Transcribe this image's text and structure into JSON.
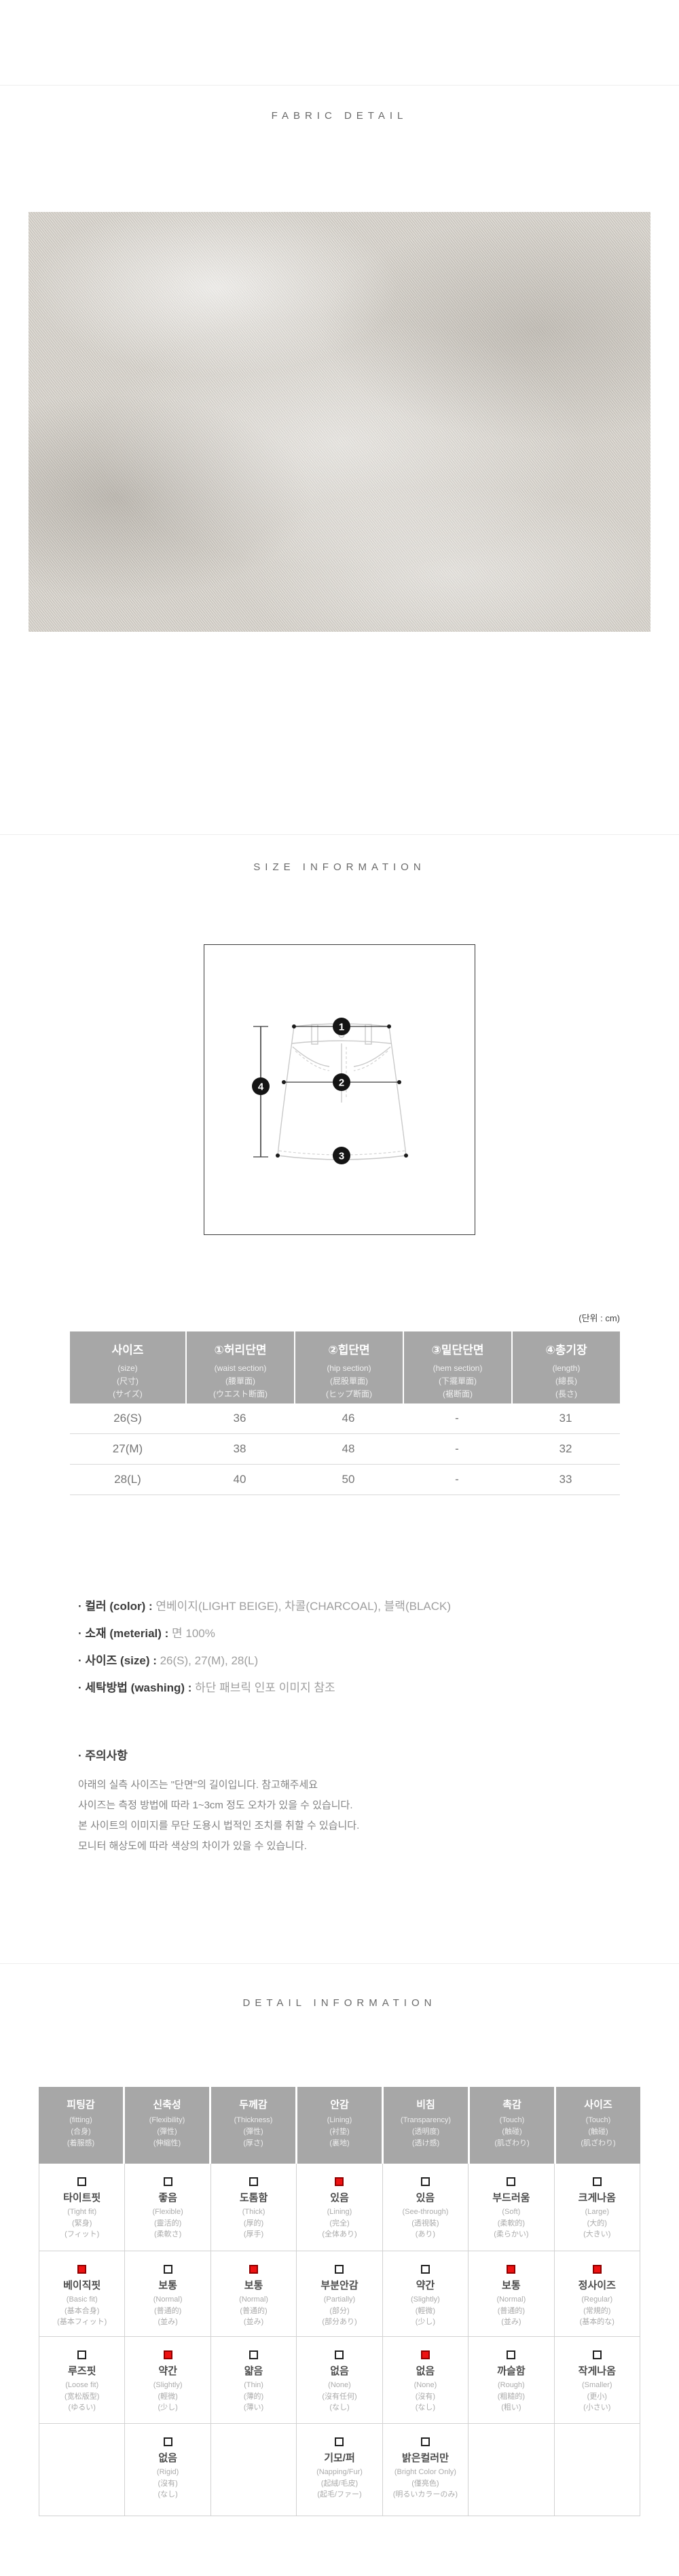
{
  "sections": {
    "fabric_title": "FABRIC DETAIL",
    "size_title": "SIZE INFORMATION",
    "detail_title": "DETAIL INFORMATION"
  },
  "colors": {
    "header_gray": "#a7a7a7",
    "checked_red": "#ee1212"
  },
  "diagram": {
    "badge1": "1",
    "badge2": "2",
    "badge3": "3",
    "badge4": "4"
  },
  "size_table": {
    "unit_note": "(단위 : cm)",
    "columns": [
      {
        "lines": [
          "사이즈",
          "(size)",
          "(尺寸)",
          "(サイズ)"
        ]
      },
      {
        "lines": [
          "①허리단면",
          "(waist section)",
          "(腰單面)",
          "(ウエスト断面)"
        ]
      },
      {
        "lines": [
          "②힙단면",
          "(hip section)",
          "(屁股單面)",
          "(ヒップ断面)"
        ]
      },
      {
        "lines": [
          "③밑단단면",
          "(hem section)",
          "(下擺單面)",
          "(裾断面)"
        ]
      },
      {
        "lines": [
          "④총기장",
          "(length)",
          "(總長)",
          "(長さ)"
        ]
      }
    ],
    "rows": [
      [
        "26(S)",
        "36",
        "46",
        "-",
        "31"
      ],
      [
        "27(M)",
        "38",
        "48",
        "-",
        "32"
      ],
      [
        "28(L)",
        "40",
        "50",
        "-",
        "33"
      ]
    ]
  },
  "product_info": {
    "items": [
      {
        "label": "· 컬러 (color) :",
        "value": "연베이지(LIGHT BEIGE), 차콜(CHARCOAL), 블랙(BLACK)"
      },
      {
        "label": "· 소재 (meterial) :",
        "value": "면 100%"
      },
      {
        "label": "· 사이즈 (size) :",
        "value": "26(S), 27(M), 28(L)"
      },
      {
        "label": "· 세탁방법 (washing) :",
        "value": "하단 패브릭 인포 이미지 참조"
      }
    ],
    "notice_title": "· 주의사항",
    "notices": [
      "아래의 실측 사이즈는 \"단면\"의 길이입니다. 참고해주세요",
      "사이즈는 측정 방법에 따라 1~3cm 정도 오차가 있을 수 있습니다.",
      "본 사이트의 이미지를 무단 도용시 법적인 조치를 취할 수 있습니다.",
      "모니터 해상도에 따라 색상의 차이가 있을 수 있습니다."
    ]
  },
  "detail_table": {
    "headers": [
      {
        "lines": [
          "피팅감",
          "(fitting)",
          "(合身)",
          "(着服感)"
        ]
      },
      {
        "lines": [
          "신축성",
          "(Flexibility)",
          "(彈性)",
          "(伸縮性)"
        ]
      },
      {
        "lines": [
          "두께감",
          "(Thickness)",
          "(彈性)",
          "(厚さ)"
        ]
      },
      {
        "lines": [
          "안감",
          "(Lining)",
          "(衬垫)",
          "(裏地)"
        ]
      },
      {
        "lines": [
          "비침",
          "(Transparency)",
          "(透明度)",
          "(透け感)"
        ]
      },
      {
        "lines": [
          "촉감",
          "(Touch)",
          "(触碰)",
          "(肌ざわり)"
        ]
      },
      {
        "lines": [
          "사이즈",
          "(Touch)",
          "(触碰)",
          "(肌ざわり)"
        ]
      }
    ],
    "rows": [
      [
        {
          "checked": false,
          "lines": [
            "타이트핏",
            "(Tight fit)",
            "(緊身)",
            "(フィット)"
          ]
        },
        {
          "checked": false,
          "lines": [
            "좋음",
            "(Flexible)",
            "(靈活的)",
            "(柔軟さ)"
          ]
        },
        {
          "checked": false,
          "lines": [
            "도톰함",
            "(Thick)",
            "(厚的)",
            "(厚手)"
          ]
        },
        {
          "checked": true,
          "lines": [
            "있음",
            "(Lining)",
            "(完全)",
            "(全体あり)"
          ]
        },
        {
          "checked": false,
          "lines": [
            "있음",
            "(See-through)",
            "(透視裝)",
            "(あり)"
          ]
        },
        {
          "checked": false,
          "lines": [
            "부드러움",
            "(Soft)",
            "(柔軟的)",
            "(柔らかい)"
          ]
        },
        {
          "checked": false,
          "lines": [
            "크게나옴",
            "(Large)",
            "(大的)",
            "(大きい)"
          ]
        }
      ],
      [
        {
          "checked": true,
          "lines": [
            "베이직핏",
            "(Basic fit)",
            "(基本合身)",
            "(基本フィット)"
          ]
        },
        {
          "checked": false,
          "lines": [
            "보통",
            "(Normal)",
            "(普通的)",
            "(並み)"
          ]
        },
        {
          "checked": true,
          "lines": [
            "보통",
            "(Normal)",
            "(普通的)",
            "(並み)"
          ]
        },
        {
          "checked": false,
          "lines": [
            "부분안감",
            "(Partially)",
            "(部分)",
            "(部分あり)"
          ]
        },
        {
          "checked": false,
          "lines": [
            "약간",
            "(Slightly)",
            "(輕微)",
            "(少し)"
          ]
        },
        {
          "checked": true,
          "lines": [
            "보통",
            "(Normal)",
            "(普通的)",
            "(並み)"
          ]
        },
        {
          "checked": true,
          "lines": [
            "정사이즈",
            "(Regular)",
            "(常規的)",
            "(基本的な)"
          ]
        }
      ],
      [
        {
          "checked": false,
          "lines": [
            "루즈핏",
            "(Loose fit)",
            "(宽松版型)",
            "(ゆるい)"
          ]
        },
        {
          "checked": true,
          "lines": [
            "약간",
            "(Slightly)",
            "(輕微)",
            "(少し)"
          ]
        },
        {
          "checked": false,
          "lines": [
            "얇음",
            "(Thin)",
            "(薄的)",
            "(薄い)"
          ]
        },
        {
          "checked": false,
          "lines": [
            "없음",
            "(None)",
            "(沒有任何)",
            "(なし)"
          ]
        },
        {
          "checked": true,
          "lines": [
            "없음",
            "(None)",
            "(沒有)",
            "(なし)"
          ]
        },
        {
          "checked": false,
          "lines": [
            "까슬함",
            "(Rough)",
            "(粗糙的)",
            "(粗い)"
          ]
        },
        {
          "checked": false,
          "lines": [
            "작게나옴",
            "(Smaller)",
            "(更小)",
            "(小さい)"
          ]
        }
      ],
      [
        null,
        {
          "checked": false,
          "lines": [
            "없음",
            "(Rigid)",
            "(沒有)",
            "(なし)"
          ]
        },
        null,
        {
          "checked": false,
          "lines": [
            "기모/퍼",
            "(Napping/Fur)",
            "(起絨/毛皮)",
            "(起毛/ファー)"
          ]
        },
        {
          "checked": false,
          "lines": [
            "밝은컬러만",
            "(Bright Color Only)",
            "(僅亮色)",
            "(明るいカラーのみ)"
          ]
        },
        null,
        null
      ]
    ]
  }
}
